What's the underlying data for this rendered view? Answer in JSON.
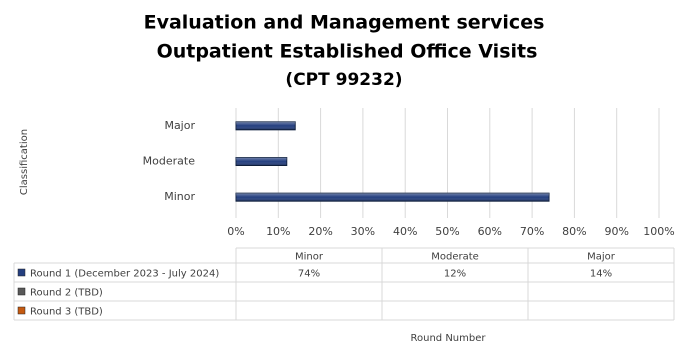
{
  "chart_data": {
    "type": "bar",
    "orientation": "horizontal",
    "title": [
      "Evaluation and Management services",
      "Outpatient Established Office Visits",
      "(CPT 99232)"
    ],
    "y_label": "Classification",
    "x_label": "Round Number",
    "categories": [
      "Minor",
      "Moderate",
      "Major"
    ],
    "series": [
      {
        "name": "Round 1 (December 2023 - July 2024)",
        "color": "#243f7f",
        "values": [
          74,
          12,
          14
        ],
        "value_labels": [
          "74%",
          "12%",
          "14%"
        ]
      },
      {
        "name": "Round 2 (TBD)",
        "color": "#595959",
        "values": [
          null,
          null,
          null
        ]
      },
      {
        "name": "Round 3 (TBD)",
        "color": "#c55a11",
        "values": [
          null,
          null,
          null
        ]
      }
    ],
    "xlim": [
      0,
      100
    ],
    "xticks": [
      {
        "value": 0,
        "label": "0%"
      },
      {
        "value": 10,
        "label": "10%"
      },
      {
        "value": 20,
        "label": "20%"
      },
      {
        "value": 30,
        "label": "30%"
      },
      {
        "value": 40,
        "label": "40%"
      },
      {
        "value": 50,
        "label": "50%"
      },
      {
        "value": 60,
        "label": "60%"
      },
      {
        "value": 70,
        "label": "70%"
      },
      {
        "value": 80,
        "label": "80%"
      },
      {
        "value": 90,
        "label": "90%"
      },
      {
        "value": 100,
        "label": "100%"
      }
    ],
    "grid": true
  }
}
